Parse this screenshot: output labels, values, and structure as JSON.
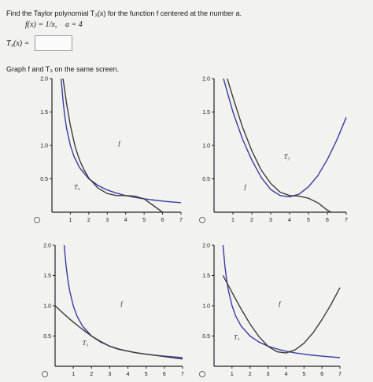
{
  "question": {
    "prompt": "Find the Taylor polynomial T₃(x) for the function f centered at the number a.",
    "function_text": "f(x) = 1/x,",
    "a_text": "a = 4",
    "answer_label": "T₃(x) =",
    "answer_value": "",
    "graph_instruction": "Graph f and T₃ on the same screen."
  },
  "colors": {
    "f_curve": "#3a3aa8",
    "t3_curve": "#3c3c3c",
    "axis": "#222222"
  },
  "chart_data": [
    {
      "type": "line",
      "option": "top-left",
      "xlim": [
        0,
        7
      ],
      "ylim": [
        0,
        2
      ],
      "xticks": [
        "1",
        "2",
        "3",
        "4",
        "5",
        "6",
        "7"
      ],
      "yticks": [
        "0.5",
        "1.0",
        "1.5",
        "2.0"
      ],
      "series": [
        {
          "name": "f",
          "x": [
            0.5,
            0.6,
            0.7,
            0.8,
            1,
            1.2,
            1.5,
            2,
            2.5,
            3,
            3.5,
            4,
            4.5,
            5,
            5.5,
            6,
            6.5,
            7
          ],
          "y": [
            2,
            1.667,
            1.429,
            1.25,
            1,
            0.833,
            0.667,
            0.5,
            0.4,
            0.333,
            0.286,
            0.25,
            0.222,
            0.2,
            0.182,
            0.167,
            0.154,
            0.143
          ]
        },
        {
          "name": "T₃",
          "x": [
            0.6,
            0.8,
            1,
            1.25,
            1.5,
            1.75,
            2,
            2.5,
            3,
            3.5,
            4,
            4.5,
            5,
            5.5,
            6
          ],
          "y": [
            2,
            1.62,
            1.3,
            0.99,
            0.78,
            0.63,
            0.51,
            0.36,
            0.28,
            0.25,
            0.25,
            0.24,
            0.2,
            0.1,
            0
          ]
        }
      ],
      "labels": [
        {
          "text": "f",
          "x": 3.6,
          "y": 1.0
        },
        {
          "text": "T₃",
          "x": 1.2,
          "y": 0.35
        }
      ]
    },
    {
      "type": "line",
      "option": "top-right",
      "xlim": [
        0,
        7
      ],
      "ylim": [
        0,
        2
      ],
      "xticks": [
        "1",
        "2",
        "3",
        "4",
        "5",
        "6",
        "7"
      ],
      "yticks": [
        "0.5",
        "1.0",
        "1.5",
        "2.0"
      ],
      "series": [
        {
          "name": "f",
          "x": [
            0.5,
            1,
            1.5,
            2,
            2.5,
            3,
            3.5,
            4,
            4.5,
            5,
            5.5,
            6,
            6.5,
            7
          ],
          "y": [
            2,
            1.5,
            1.1,
            0.78,
            0.52,
            0.34,
            0.25,
            0.23,
            0.27,
            0.38,
            0.55,
            0.79,
            1.08,
            1.42
          ]
        },
        {
          "name": "T₃",
          "x": [
            0.7,
            1,
            1.5,
            2,
            2.5,
            3,
            3.5,
            4,
            4.5,
            5,
            5.5,
            6,
            6.2
          ],
          "y": [
            2,
            1.72,
            1.28,
            0.92,
            0.63,
            0.43,
            0.3,
            0.25,
            0.24,
            0.21,
            0.14,
            0.03,
            0
          ]
        }
      ],
      "labels": [
        {
          "text": "T₃",
          "x": 3.7,
          "y": 0.8
        },
        {
          "text": "f",
          "x": 1.6,
          "y": 0.35
        }
      ]
    },
    {
      "type": "line",
      "option": "bottom-left",
      "xlim": [
        0,
        7
      ],
      "ylim": [
        0,
        2
      ],
      "xticks": [
        "1",
        "2",
        "3",
        "4",
        "5",
        "6",
        "7"
      ],
      "yticks": [
        "0.5",
        "1.0",
        "1.5",
        "2.0"
      ],
      "series": [
        {
          "name": "f",
          "x": [
            0.5,
            0.6,
            0.7,
            0.8,
            1,
            1.2,
            1.5,
            2,
            2.5,
            3,
            3.5,
            4,
            4.5,
            5,
            5.5,
            6,
            6.5,
            7
          ],
          "y": [
            2,
            1.667,
            1.429,
            1.25,
            1,
            0.833,
            0.667,
            0.5,
            0.4,
            0.333,
            0.286,
            0.25,
            0.222,
            0.2,
            0.182,
            0.167,
            0.154,
            0.143
          ]
        },
        {
          "name": "T₃",
          "x": [
            0,
            0.5,
            1,
            1.5,
            2,
            2.5,
            3,
            3.5,
            4,
            4.5,
            5,
            5.5,
            6,
            6.5,
            7
          ],
          "y": [
            1.0,
            0.86,
            0.73,
            0.61,
            0.5,
            0.41,
            0.33,
            0.28,
            0.25,
            0.22,
            0.2,
            0.18,
            0.16,
            0.14,
            0.12
          ]
        }
      ],
      "labels": [
        {
          "text": "f",
          "x": 3.6,
          "y": 1.0
        },
        {
          "text": "T₃",
          "x": 1.5,
          "y": 0.35
        }
      ]
    },
    {
      "type": "line",
      "option": "bottom-right",
      "xlim": [
        0,
        7
      ],
      "ylim": [
        0,
        2
      ],
      "xticks": [
        "1",
        "2",
        "3",
        "4",
        "5",
        "6",
        "7"
      ],
      "yticks": [
        "0.5",
        "1.0",
        "1.5",
        "2.0"
      ],
      "series": [
        {
          "name": "f",
          "x": [
            0.5,
            0.6,
            0.7,
            0.8,
            1,
            1.2,
            1.5,
            2,
            2.5,
            3,
            3.5,
            4,
            4.5,
            5,
            5.5,
            6,
            6.5,
            7
          ],
          "y": [
            2,
            1.667,
            1.429,
            1.25,
            1,
            0.833,
            0.667,
            0.5,
            0.4,
            0.333,
            0.286,
            0.25,
            0.222,
            0.2,
            0.182,
            0.167,
            0.154,
            0.143
          ]
        },
        {
          "name": "T₃",
          "x": [
            0.5,
            1,
            1.5,
            2,
            2.5,
            3,
            3.5,
            4,
            4.5,
            5,
            5.5,
            6,
            6.5,
            7
          ],
          "y": [
            1.5,
            1.22,
            0.95,
            0.7,
            0.49,
            0.33,
            0.24,
            0.22,
            0.27,
            0.38,
            0.55,
            0.77,
            1.02,
            1.3
          ]
        }
      ],
      "labels": [
        {
          "text": "f",
          "x": 3.6,
          "y": 1.0
        },
        {
          "text": "T₃",
          "x": 1.1,
          "y": 0.45
        }
      ]
    }
  ]
}
